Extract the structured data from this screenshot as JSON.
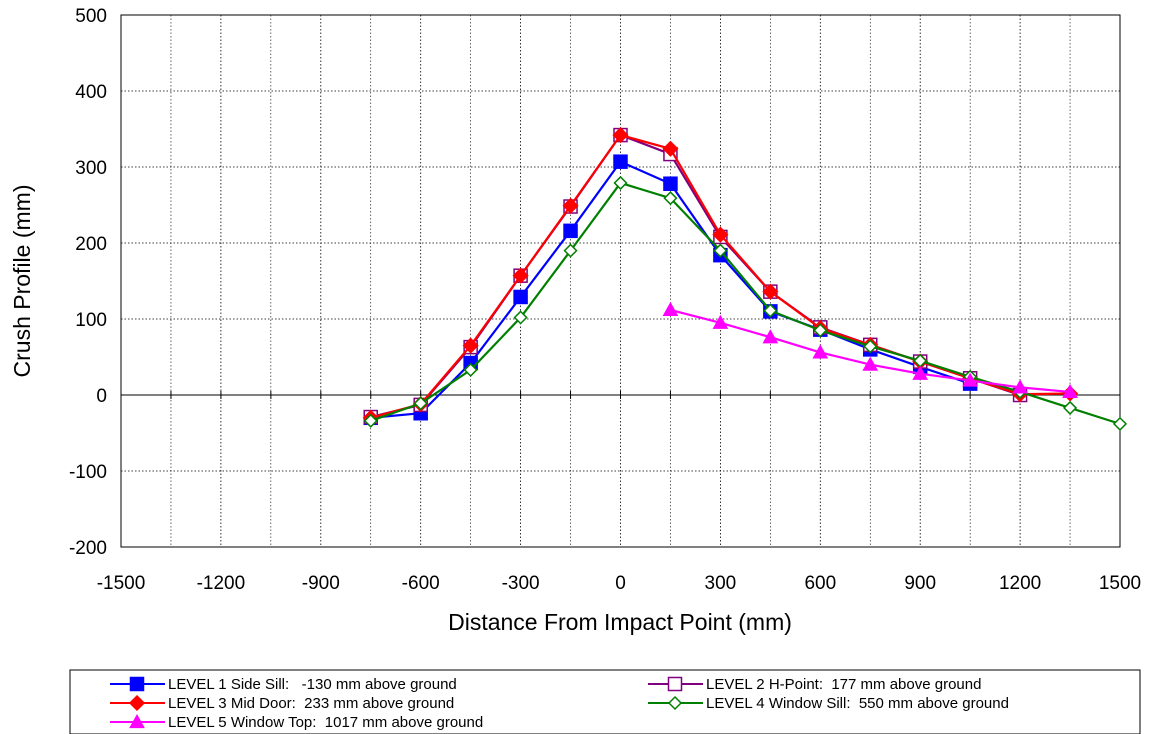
{
  "chart_data": {
    "type": "line",
    "xlabel": "Distance From Impact Point (mm)",
    "ylabel": "Crush Profile (mm)",
    "xlim": [
      -1500,
      1500
    ],
    "ylim": [
      -200,
      500
    ],
    "xticks": [
      -1500,
      -1200,
      -900,
      -600,
      -300,
      0,
      300,
      600,
      900,
      1200,
      1500
    ],
    "yticks": [
      -200,
      -100,
      0,
      100,
      200,
      300,
      400,
      500
    ],
    "grid": true,
    "legend_position": "bottom",
    "series": [
      {
        "name": "LEVEL 1 Side Sill:   -130 mm above ground",
        "color": "#0000FF",
        "marker": "square-filled",
        "x": [
          -750,
          -600,
          -450,
          -300,
          -150,
          0,
          150,
          300,
          450,
          600,
          750,
          900,
          1050
        ],
        "y": [
          -30,
          -24,
          42,
          129,
          216,
          307,
          278,
          184,
          110,
          86,
          60,
          37,
          15
        ]
      },
      {
        "name": "LEVEL 2 H-Point:  177 mm above ground",
        "color": "#800080",
        "marker": "square-open",
        "x": [
          -750,
          -600,
          -450,
          -300,
          -150,
          0,
          150,
          300,
          450,
          600,
          750,
          900,
          1050,
          1200
        ],
        "y": [
          -29,
          -13,
          63,
          157,
          248,
          342,
          317,
          208,
          136,
          89,
          66,
          44,
          22,
          0
        ]
      },
      {
        "name": "LEVEL 3 Mid Door:  233 mm above ground",
        "color": "#FF0000",
        "marker": "diamond-filled",
        "x": [
          -750,
          -600,
          -450,
          -300,
          -150,
          0,
          150,
          300,
          450,
          600,
          750,
          900,
          1050,
          1200,
          1350
        ],
        "y": [
          -30,
          -12,
          65,
          157,
          249,
          342,
          324,
          211,
          136,
          88,
          66,
          44,
          22,
          1,
          2
        ]
      },
      {
        "name": "LEVEL 4 Window Sill:  550 mm above ground",
        "color": "#008000",
        "marker": "diamond-open",
        "x": [
          -750,
          -600,
          -450,
          -300,
          -150,
          0,
          150,
          300,
          450,
          600,
          750,
          900,
          1050,
          1200,
          1350,
          1500
        ],
        "y": [
          -34,
          -11,
          33,
          102,
          190,
          279,
          259,
          190,
          111,
          85,
          64,
          45,
          24,
          4,
          -17,
          -38
        ]
      },
      {
        "name": "LEVEL 5 Window Top:  1017 mm above ground",
        "color": "#FF00FF",
        "marker": "triangle-filled",
        "x": [
          150,
          300,
          450,
          600,
          750,
          900,
          1050,
          1200,
          1350
        ],
        "y": [
          112,
          95,
          76,
          56,
          40,
          28,
          19,
          10,
          4
        ]
      }
    ]
  }
}
